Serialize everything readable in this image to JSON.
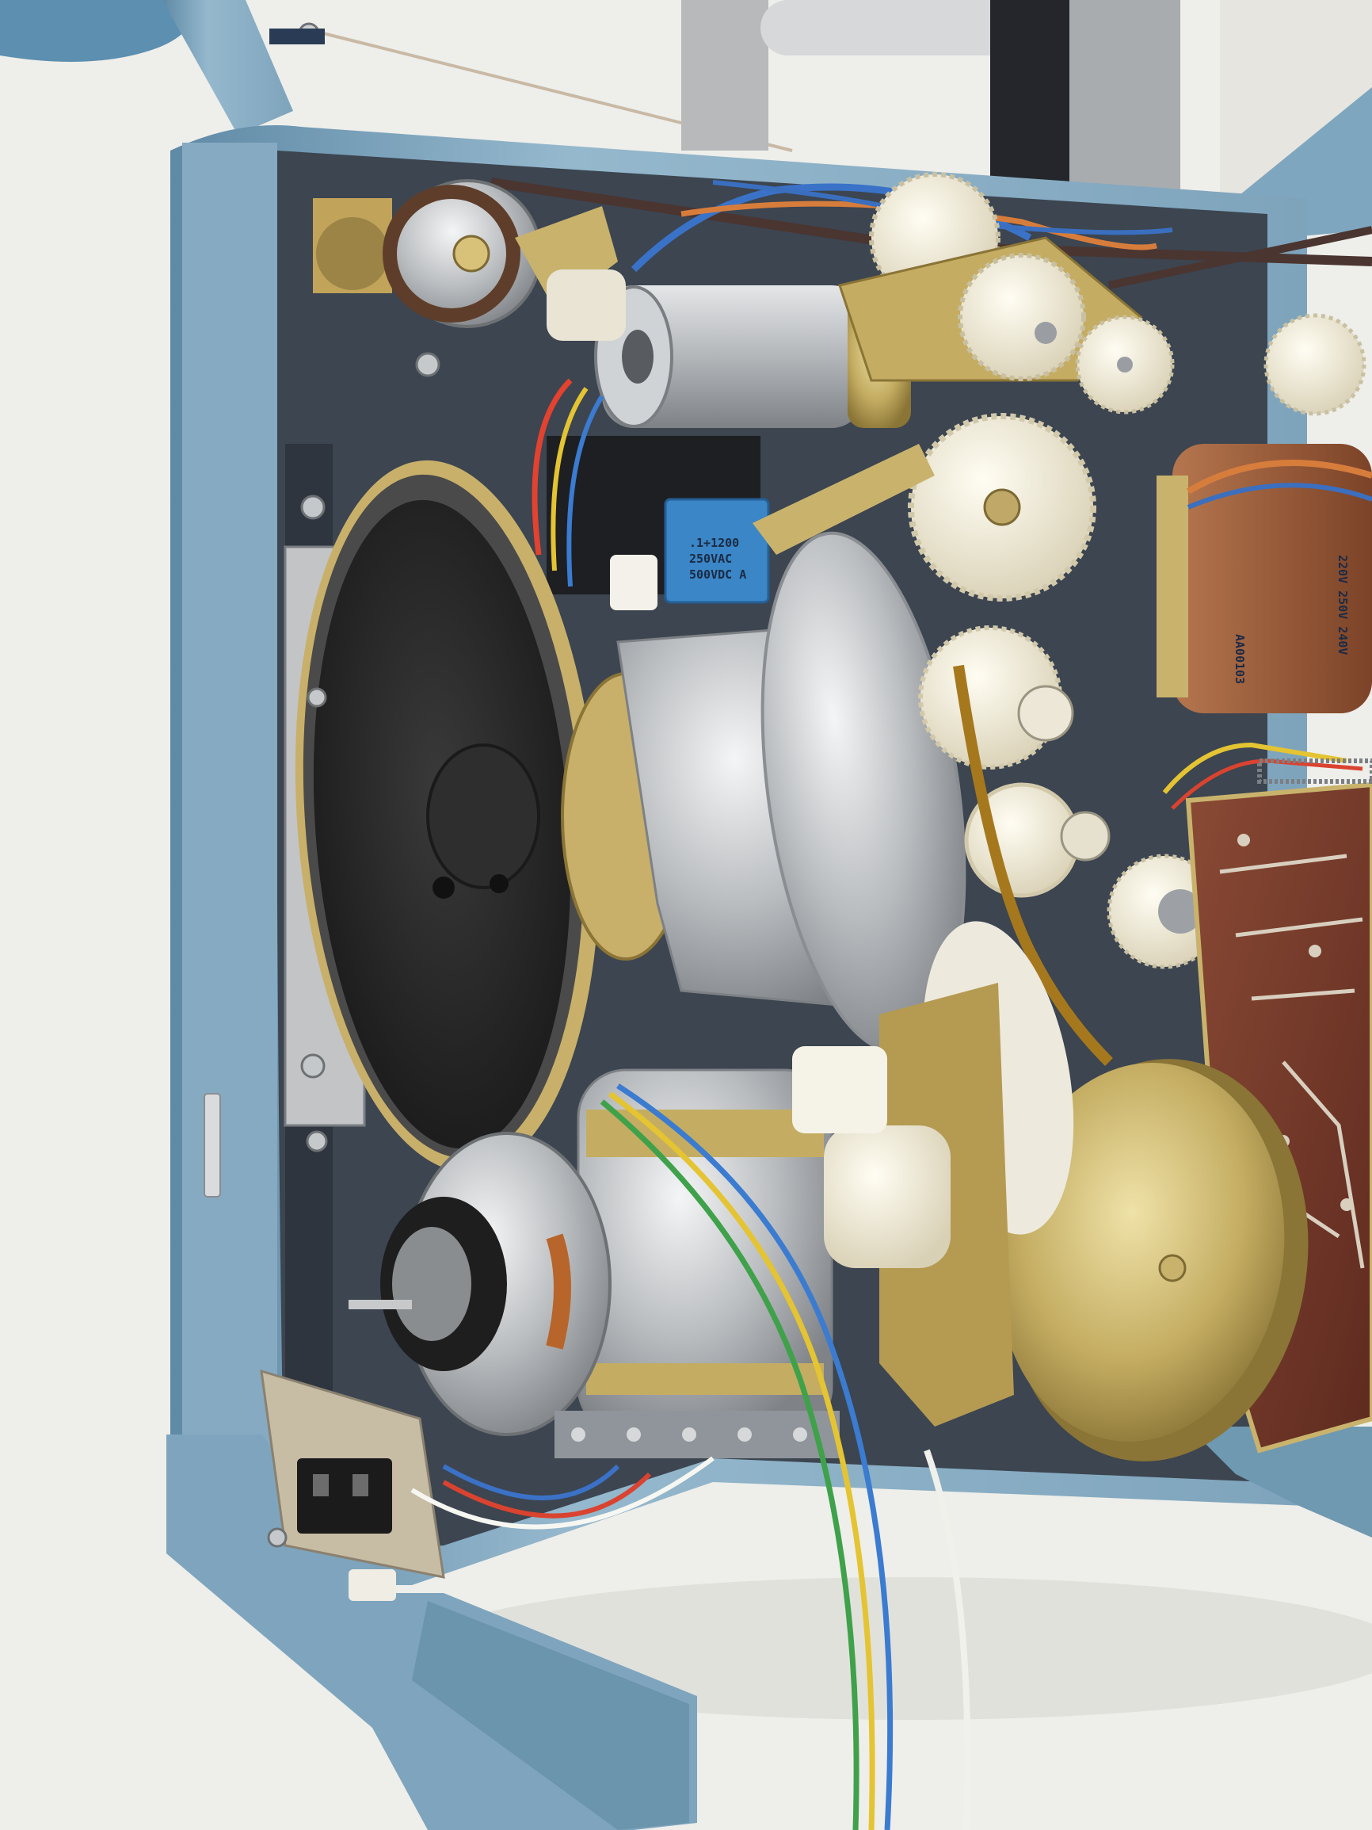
{
  "photo": {
    "subject": "projector-internals",
    "colors": {
      "background": "#eeeeea",
      "chassis_blue": "#8fb2c8",
      "chassis_shadow": "#5f8aa6",
      "inner_panel": "#3e4752",
      "aluminium": "#c4c6c8",
      "brass": "#c8b46e",
      "nylon_white": "#f1ecd9",
      "pcb_brown": "#7a3a2a",
      "speaker_black": "#2a2a2a",
      "capacitor_blue": "#3a86c6",
      "transformer_brown": "#9a5a3a"
    }
  },
  "capacitor_label": {
    "line1": ".1+1200",
    "line2": "250VAC",
    "line3": "500VDC A"
  },
  "transformer_label": {
    "code": "AA00103",
    "voltages": "220V 250V 240V"
  }
}
